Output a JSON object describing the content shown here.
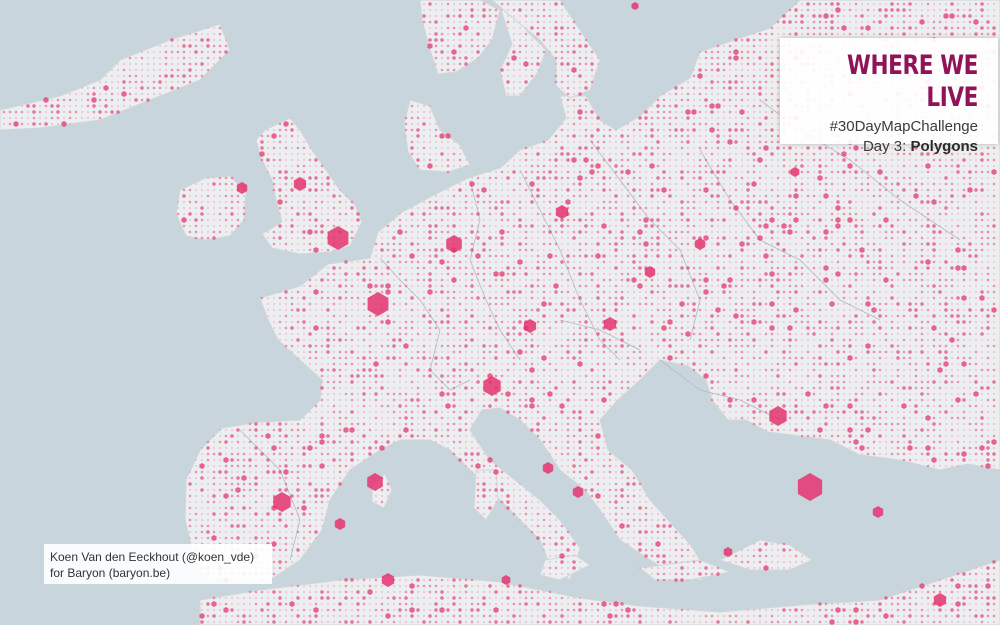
{
  "title_card": {
    "title": "WHERE WE LIVE",
    "hashtag": "#30DayMapChallenge",
    "day_prefix": "Day 3:",
    "day_theme": "Polygons"
  },
  "credit": {
    "line1": "Koen Van den Eeckhout (@koen_vde)",
    "line2": "for Baryon (baryon.be)"
  },
  "colors": {
    "sea": "#c9d5dc",
    "land": "#eceeef",
    "border": "#b4bcc2",
    "dot": "#e5336f",
    "title": "#8f1457"
  },
  "legend_symbol": "hexagon-icon"
}
